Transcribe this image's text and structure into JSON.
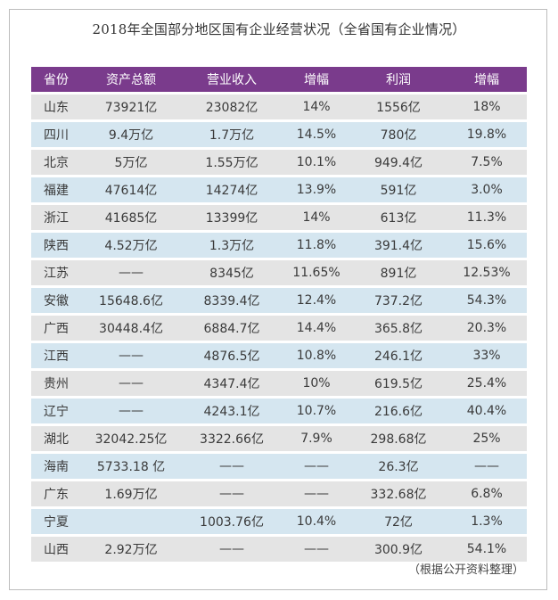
{
  "title": "2018年全国部分地区国有企业经营状况（全省国有企业情况）",
  "table": {
    "headers": [
      "省份",
      "资产总额",
      "营业收入",
      "增幅",
      "利润",
      "增幅"
    ],
    "rows": [
      [
        "山东",
        "73921亿",
        "23082亿",
        "14%",
        "1556亿",
        "18%"
      ],
      [
        "四川",
        "9.4万亿",
        "1.7万亿",
        "14.5%",
        "780亿",
        "19.8%"
      ],
      [
        "北京",
        "5万亿",
        "1.55万亿",
        "10.1%",
        "949.4亿",
        "7.5%"
      ],
      [
        "福建",
        "47614亿",
        "14274亿",
        "13.9%",
        "591亿",
        "3.0%"
      ],
      [
        "浙江",
        "41685亿",
        "13399亿",
        "14%",
        "613亿",
        "11.3%"
      ],
      [
        "陕西",
        "4.52万亿",
        "1.3万亿",
        "11.8%",
        "391.4亿",
        "15.6%"
      ],
      [
        "江苏",
        "——",
        "8345亿",
        "11.65%",
        "891亿",
        "12.53%"
      ],
      [
        "安徽",
        "15648.6亿",
        "8339.4亿",
        "12.4%",
        "737.2亿",
        "54.3%"
      ],
      [
        "广西",
        "30448.4亿",
        "6884.7亿",
        "14.4%",
        "365.8亿",
        "20.3%"
      ],
      [
        "江西",
        "——",
        "4876.5亿",
        "10.8%",
        "246.1亿",
        "33%"
      ],
      [
        "贵州",
        "——",
        "4347.4亿",
        "10%",
        "619.5亿",
        "25.4%"
      ],
      [
        "辽宁",
        "——",
        "4243.1亿",
        "10.7%",
        "216.6亿",
        "40.4%"
      ],
      [
        "湖北",
        "32042.25亿",
        "3322.66亿",
        "7.9%",
        "298.68亿",
        "25%"
      ],
      [
        "海南",
        "5733.18 亿",
        "——",
        "——",
        "26.3亿",
        "——"
      ],
      [
        "广东",
        "1.69万亿",
        "——",
        "——",
        "332.68亿",
        "6.8%"
      ],
      [
        "宁夏",
        "",
        "1003.76亿",
        "10.4%",
        "72亿",
        "1.3%"
      ],
      [
        "山西",
        "2.92万亿",
        "——",
        "——",
        "300.9亿",
        "54.1%"
      ]
    ]
  },
  "source": "（根据公开资料整理）",
  "colors": {
    "header_bg": "#7a3b8c",
    "row_gray": "#e4e4e4",
    "row_blue": "#d5e6f0"
  }
}
